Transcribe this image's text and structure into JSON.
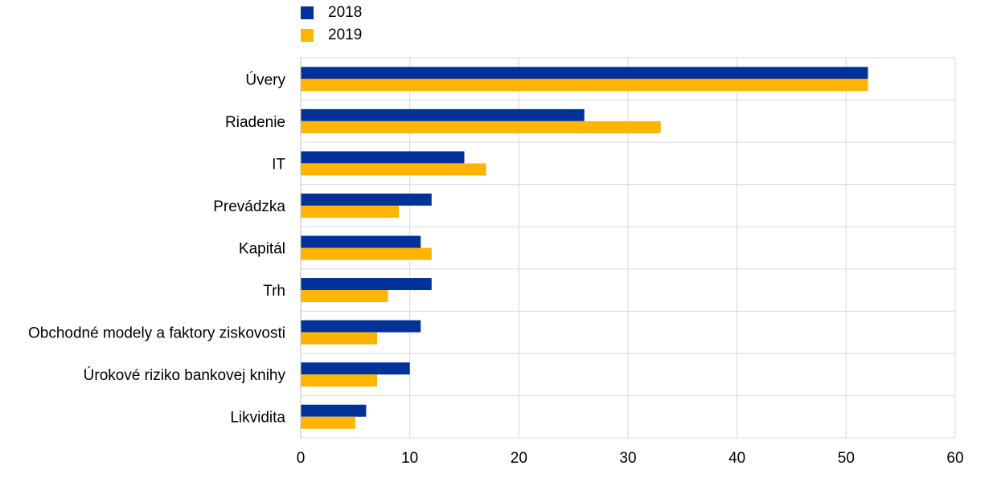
{
  "chart_data": {
    "type": "bar",
    "orientation": "horizontal",
    "categories": [
      "Úvery",
      "Riadenie",
      "IT",
      "Prevádzka",
      "Kapitál",
      "Trh",
      "Obchodné modely a faktory ziskovosti",
      "Úrokové riziko bankovej knihy",
      "Likvidita"
    ],
    "series": [
      {
        "name": "2018",
        "color": "#003299",
        "values": [
          52,
          26,
          15,
          12,
          11,
          12,
          11,
          10,
          6
        ]
      },
      {
        "name": "2019",
        "color": "#FFB400",
        "values": [
          52,
          33,
          17,
          9,
          12,
          8,
          7,
          7,
          5
        ]
      }
    ],
    "xlim": [
      0,
      60
    ],
    "xticks": [
      "0",
      "10",
      "20",
      "30",
      "40",
      "50",
      "60"
    ],
    "grid": true,
    "legend_position": "top-left"
  }
}
